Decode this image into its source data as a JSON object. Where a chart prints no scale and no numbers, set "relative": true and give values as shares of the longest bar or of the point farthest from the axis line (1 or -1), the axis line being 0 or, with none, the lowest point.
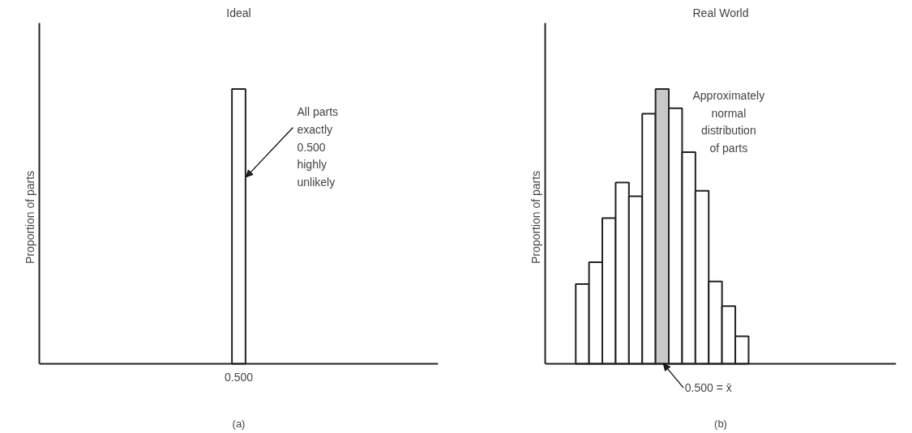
{
  "chart_data": [
    {
      "type": "bar",
      "title": "Ideal",
      "ylabel": "Proportion of parts",
      "categories": [
        "0.500"
      ],
      "values": [
        1
      ],
      "colors": [
        "#ffffff"
      ],
      "relative": true,
      "tick_labels": "x",
      "annotations": [
        "All parts\nexactly\n0.500\nhighly\nunlikely",
        "(a)"
      ]
    },
    {
      "type": "bar",
      "title": "Real World",
      "ylabel": "Proportion of parts",
      "categories": [
        null,
        null,
        null,
        null,
        null,
        null,
        null,
        null,
        null,
        null,
        null,
        null,
        null
      ],
      "values": [
        0.29,
        0.37,
        0.53,
        0.66,
        0.61,
        0.91,
        1,
        0.93,
        0.77,
        0.63,
        0.3,
        0.21,
        0.1
      ],
      "colors": [
        "#ffffff",
        "#ffffff",
        "#ffffff",
        "#ffffff",
        "#ffffff",
        "#ffffff",
        "#c8c8c8",
        "#ffffff",
        "#ffffff",
        "#ffffff",
        "#ffffff",
        "#ffffff",
        "#ffffff"
      ],
      "relative": true,
      "tick_labels": false,
      "annotations": [
        "Approximately\nnormal\ndistribution\nof parts",
        "0.500 = x̄",
        "(b)"
      ]
    }
  ]
}
